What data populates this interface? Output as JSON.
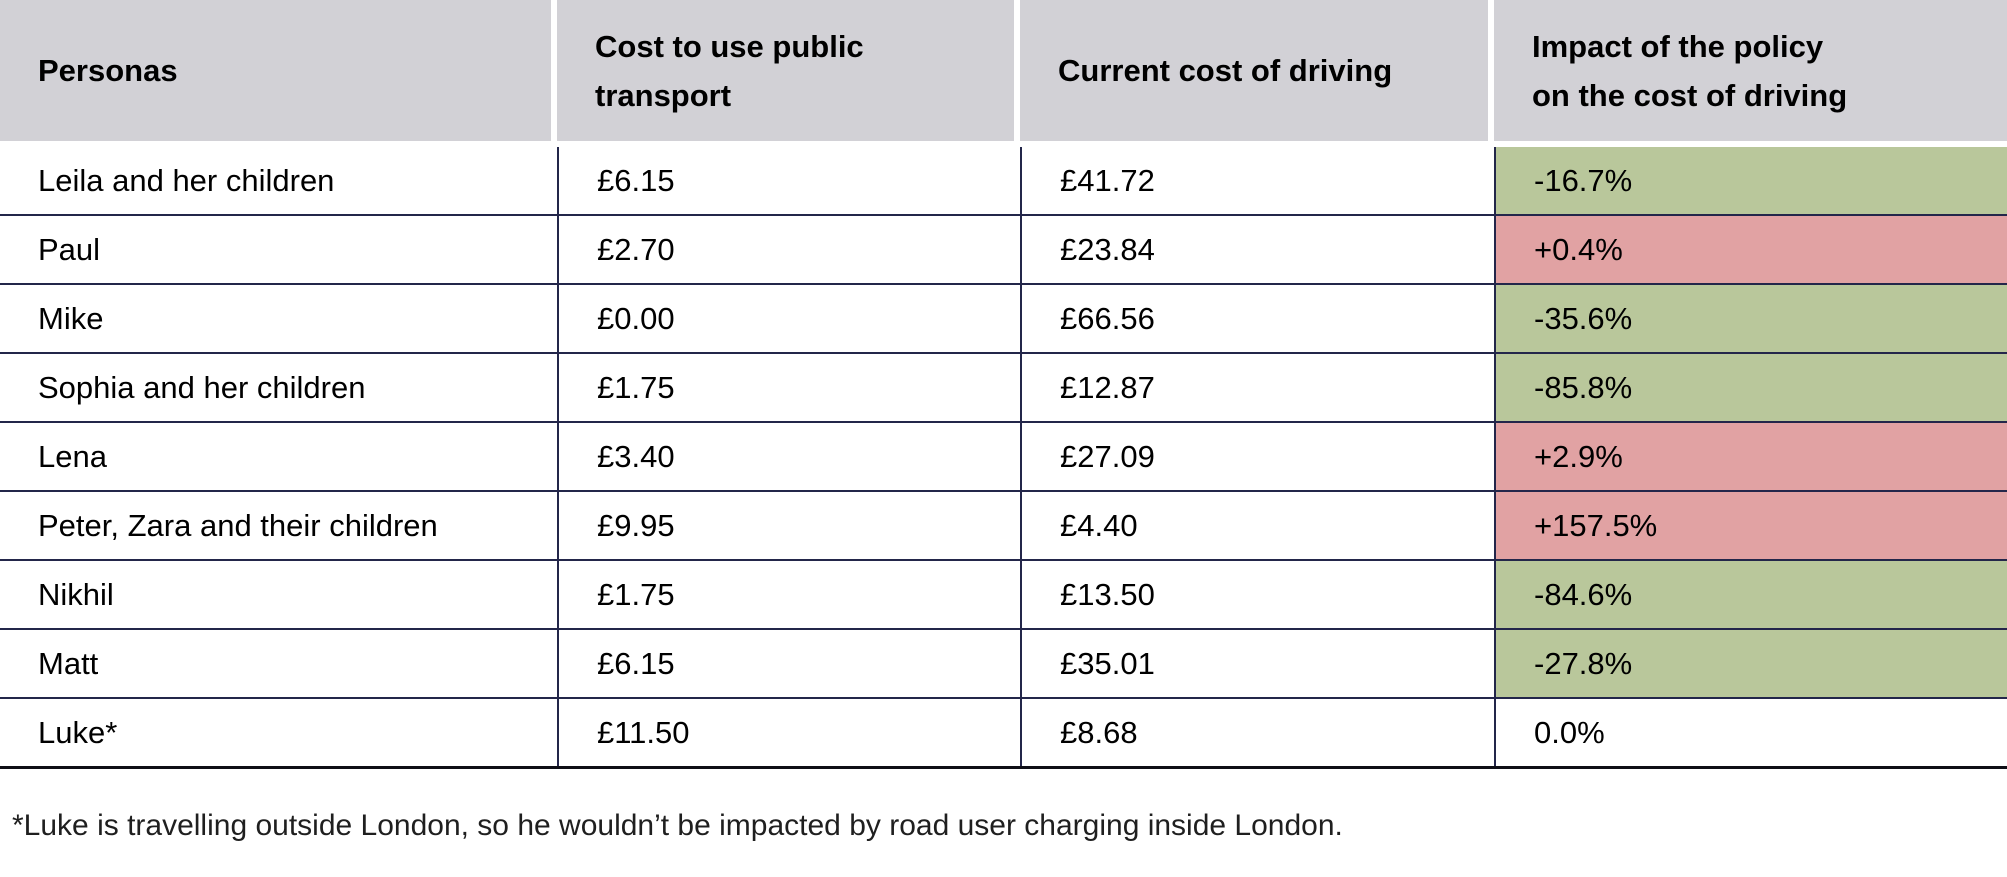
{
  "colors": {
    "header_bg": "#d2d1d6",
    "row_border": "#23264a",
    "bottom_border": "#0e0e16",
    "impact_decrease_bg": "#b9c79b",
    "impact_increase_bg": "#e1a2a3",
    "impact_neutral_bg": "#ffffff",
    "text": "#000000"
  },
  "header": {
    "col1": "Personas",
    "col2": "Cost to use public\ntransport",
    "col3": "Current cost of driving",
    "col4": "Impact of the policy\non the cost of driving"
  },
  "rows": [
    {
      "persona": "Leila and her children",
      "public_transport_cost": "£6.15",
      "driving_cost": "£41.72",
      "impact": "-16.7%",
      "impact_bg": "#b9c79b"
    },
    {
      "persona": "Paul",
      "public_transport_cost": "£2.70",
      "driving_cost": "£23.84",
      "impact": "+0.4%",
      "impact_bg": "#e1a2a3"
    },
    {
      "persona": "Mike",
      "public_transport_cost": "£0.00",
      "driving_cost": "£66.56",
      "impact": "-35.6%",
      "impact_bg": "#b9c79b"
    },
    {
      "persona": "Sophia and her children",
      "public_transport_cost": "£1.75",
      "driving_cost": "£12.87",
      "impact": "-85.8%",
      "impact_bg": "#b9c79b"
    },
    {
      "persona": "Lena",
      "public_transport_cost": "£3.40",
      "driving_cost": "£27.09",
      "impact": "+2.9%",
      "impact_bg": "#e1a2a3"
    },
    {
      "persona": "Peter, Zara and their children",
      "public_transport_cost": "£9.95",
      "driving_cost": "£4.40",
      "impact": "+157.5%",
      "impact_bg": "#e1a2a3"
    },
    {
      "persona": "Nikhil",
      "public_transport_cost": "£1.75",
      "driving_cost": "£13.50",
      "impact": "-84.6%",
      "impact_bg": "#b9c79b"
    },
    {
      "persona": "Matt",
      "public_transport_cost": "£6.15",
      "driving_cost": "£35.01",
      "impact": "-27.8%",
      "impact_bg": "#b9c79b"
    },
    {
      "persona": "Luke*",
      "public_transport_cost": "£11.50",
      "driving_cost": "£8.68",
      "impact": "0.0%",
      "impact_bg": "#ffffff"
    }
  ],
  "footnote": "*Luke is travelling outside London, so he wouldn’t be impacted by road user charging inside London.",
  "chart_data": {
    "type": "table",
    "title": "",
    "columns": [
      "Personas",
      "Cost to use public transport",
      "Current cost of driving",
      "Impact of the policy on the cost of driving"
    ],
    "rows": [
      [
        "Leila and her children",
        "£6.15",
        "£41.72",
        "-16.7%"
      ],
      [
        "Paul",
        "£2.70",
        "£23.84",
        "+0.4%"
      ],
      [
        "Mike",
        "£0.00",
        "£66.56",
        "-35.6%"
      ],
      [
        "Sophia and her children",
        "£1.75",
        "£12.87",
        "-85.8%"
      ],
      [
        "Lena",
        "£3.40",
        "£27.09",
        "+2.9%"
      ],
      [
        "Peter, Zara and their children",
        "£9.95",
        "£4.40",
        "+157.5%"
      ],
      [
        "Nikhil",
        "£1.75",
        "£13.50",
        "-84.6%"
      ],
      [
        "Matt",
        "£6.15",
        "£35.01",
        "-27.8%"
      ],
      [
        "Luke*",
        "£11.50",
        "£8.68",
        "0.0%"
      ]
    ],
    "conditional_formatting": {
      "negative_impact_cells": "#b9c79b",
      "positive_impact_cells": "#e1a2a3",
      "zero_impact_cells": "#ffffff"
    },
    "footnote": "*Luke is travelling outside London, so he wouldn’t be impacted by road user charging inside London."
  }
}
